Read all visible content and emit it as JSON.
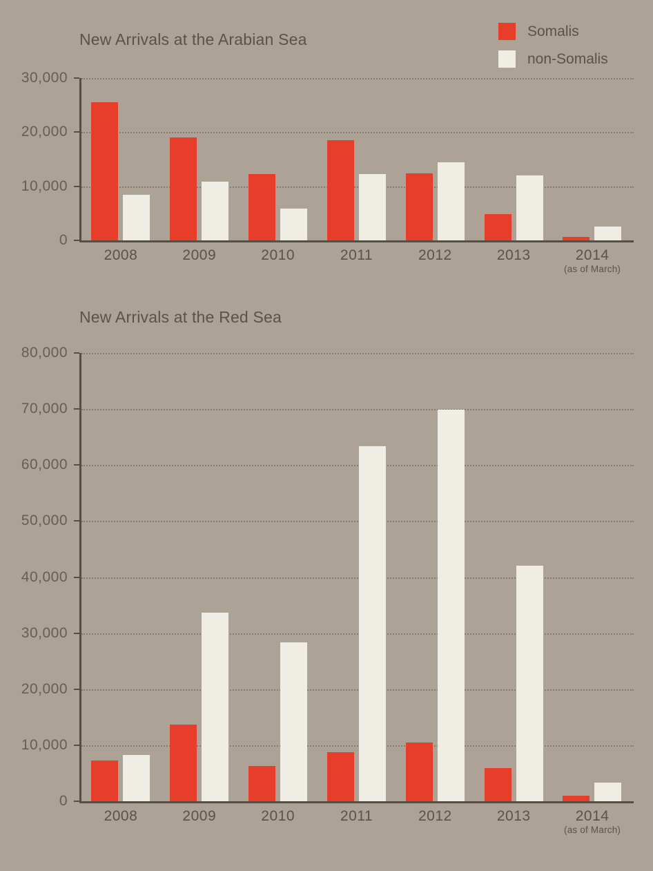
{
  "page": {
    "background_color": "#aca296",
    "text_color": "#5a5348"
  },
  "legend": {
    "position": "top-right",
    "items": [
      {
        "label": "Somalis",
        "color": "#e73e2b"
      },
      {
        "label": "non-Somalis",
        "color": "#f0ede5"
      }
    ]
  },
  "chart_data": [
    {
      "type": "bar",
      "title": "New Arrivals at the Arabian Sea",
      "categories": [
        "2008",
        "2009",
        "2010",
        "2011",
        "2012",
        "2013",
        "2014"
      ],
      "x_sublabels": [
        "",
        "",
        "",
        "",
        "",
        "",
        "(as of March)"
      ],
      "series": [
        {
          "name": "Somalis",
          "color": "#e73e2b",
          "values": [
            25500,
            19000,
            12200,
            18500,
            12400,
            4900,
            700
          ]
        },
        {
          "name": "non-Somalis",
          "color": "#f0ede5",
          "values": [
            8400,
            10800,
            5900,
            12200,
            14400,
            12000,
            2600
          ]
        }
      ],
      "ylim": [
        0,
        30000
      ],
      "ytick_interval": 10000,
      "ytick_labels": [
        "0",
        "10,000",
        "20,000",
        "30,000"
      ],
      "grid": "horizontal dotted",
      "legend_position": "top-right"
    },
    {
      "type": "bar",
      "title": "New Arrivals at the Red Sea",
      "categories": [
        "2008",
        "2009",
        "2010",
        "2011",
        "2012",
        "2013",
        "2014"
      ],
      "x_sublabels": [
        "",
        "",
        "",
        "",
        "",
        "",
        "(as of March)"
      ],
      "series": [
        {
          "name": "Somalis",
          "color": "#e73e2b",
          "values": [
            7300,
            13700,
            6300,
            8700,
            10500,
            5900,
            1000
          ]
        },
        {
          "name": "non-Somalis",
          "color": "#f0ede5",
          "values": [
            8300,
            33700,
            28400,
            63400,
            69900,
            42000,
            3300
          ]
        }
      ],
      "ylim": [
        0,
        80000
      ],
      "ytick_interval": 10000,
      "ytick_labels": [
        "0",
        "10,000",
        "20,000",
        "30,000",
        "40,000",
        "50,000",
        "60,000",
        "70,000",
        "80,000"
      ],
      "grid": "horizontal dotted",
      "legend_position": "none"
    }
  ]
}
